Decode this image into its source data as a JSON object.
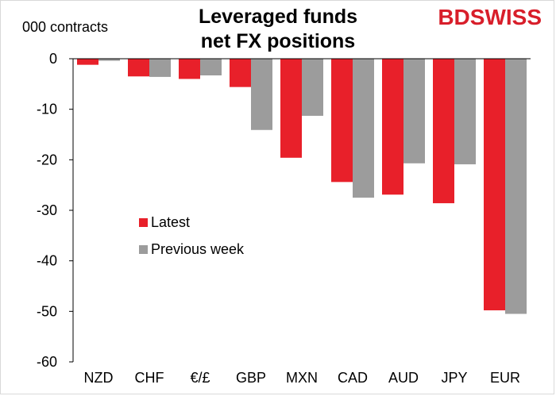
{
  "header": {
    "title_line1": "Leveraged funds",
    "title_line2": "net FX positions",
    "unit_label": "000 contracts",
    "logo_bd": "BD",
    "logo_swiss": "SWISS"
  },
  "colors": {
    "latest": "#e8202a",
    "previous": "#9c9c9c"
  },
  "chart_data": {
    "type": "bar",
    "title": "Leveraged funds net FX positions",
    "ylabel": "000 contracts",
    "categories": [
      "NZD",
      "CHF",
      "€/£",
      "GBP",
      "MXN",
      "CAD",
      "AUD",
      "JPY",
      "EUR"
    ],
    "series": [
      {
        "name": "Latest",
        "values": [
          -1.2,
          -3.5,
          -4.0,
          -5.6,
          -19.6,
          -24.4,
          -26.9,
          -28.6,
          -49.8
        ]
      },
      {
        "name": "Previous week",
        "values": [
          -0.4,
          -3.6,
          -3.3,
          -14.1,
          -11.3,
          -27.5,
          -20.7,
          -20.9,
          -50.5
        ]
      }
    ],
    "ylim": [
      -60,
      0
    ],
    "yticks": [
      "0",
      "-10",
      "-20",
      "-30",
      "-40",
      "-50",
      "-60"
    ],
    "grid": false,
    "legend_position": "inside-left"
  }
}
